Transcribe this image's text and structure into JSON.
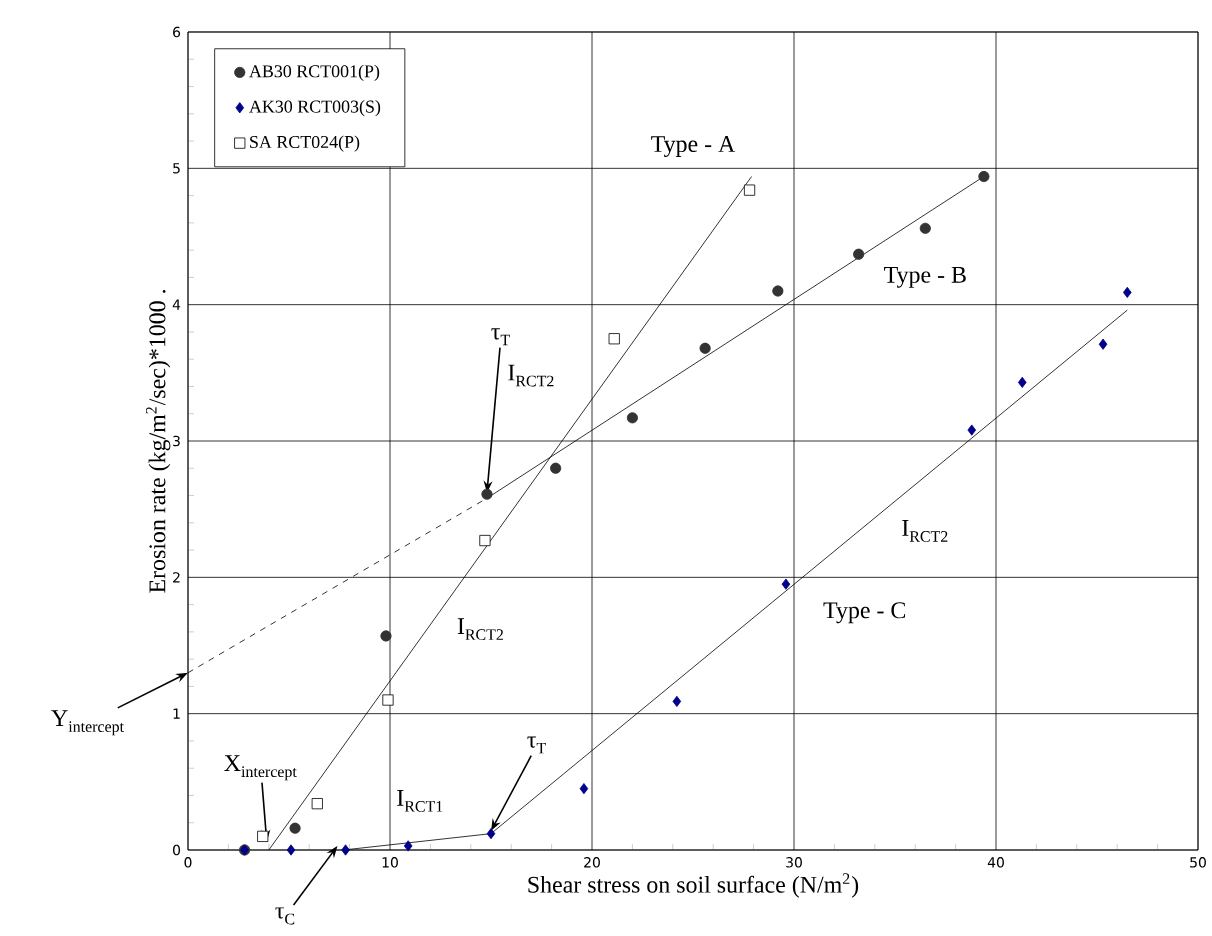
{
  "chart_data": {
    "type": "scatter",
    "xlabel": "Shear stress on soil surface (N/m$^{2}$)",
    "ylabel": "Erosion rate (kg/m$^{2}$/sec)*1000  .",
    "xlim": [
      0,
      50
    ],
    "ylim": [
      0,
      6
    ],
    "xticks": [
      0,
      10,
      20,
      30,
      40,
      50
    ],
    "yticks": [
      0,
      1,
      2,
      3,
      4,
      5,
      6
    ],
    "grid": true,
    "legend": "top left",
    "series": [
      {
        "name": "AB30 RCT001(P)",
        "color": "#333333",
        "marker": "circle",
        "x": [
          2.8,
          5.3,
          9.8,
          14.8,
          18.2,
          22.0,
          25.6,
          29.2,
          33.2,
          36.5,
          39.4
        ],
        "values": [
          0,
          0.16,
          1.57,
          2.61,
          2.8,
          3.17,
          3.68,
          4.1,
          4.37,
          4.56,
          4.94
        ]
      },
      {
        "name": "AK30 RCT003(S)",
        "color": "#00008b",
        "marker": "diamond",
        "x": [
          2.8,
          5.1,
          7.8,
          10.9,
          15.0,
          19.6,
          24.2,
          29.6,
          38.8,
          41.3,
          45.3,
          46.5
        ],
        "values": [
          0,
          0,
          0,
          0.03,
          0.12,
          0.45,
          1.09,
          1.95,
          3.08,
          3.43,
          3.71,
          4.09
        ]
      },
      {
        "name": "SA RCT024(P)",
        "color": "#000000",
        "marker": "square",
        "x": [
          3.7,
          6.4,
          9.9,
          14.7,
          21.1,
          27.8
        ],
        "values": [
          0.1,
          0.34,
          1.1,
          2.27,
          3.75,
          4.84
        ]
      },
      {
        "type": "line",
        "color": "#000000",
        "marker": "none",
        "line_style": "solid",
        "x": [
          4.0,
          27.9
        ],
        "values": [
          0,
          4.94
        ]
      },
      {
        "type": "line",
        "color": "#000000",
        "marker": "none",
        "line_style": "solid",
        "x": [
          14.8,
          39.5
        ],
        "values": [
          2.58,
          4.95
        ]
      },
      {
        "type": "line",
        "color": "#000000",
        "marker": "none",
        "line_style": "dashed",
        "x": [
          0,
          14.8
        ],
        "values": [
          1.3,
          2.58
        ]
      },
      {
        "type": "line",
        "color": "#000000",
        "marker": "none",
        "line_style": "solid",
        "x": [
          7.7,
          15.0,
          46.5
        ],
        "values": [
          0,
          0.12,
          3.96
        ]
      }
    ],
    "annotations": [
      "Type - A",
      "Type - B",
      "Type - C",
      "I$_{RCT2}$",
      "I$_{RCT2}$",
      "I$_{RCT2}$",
      "I$_{RCT1}$",
      {
        "text": "τ$_{T}$",
        "x": 14.8,
        "y": 2.62
      },
      {
        "text": "τ$_{T}$",
        "x": 15.0,
        "y": 0.14
      },
      {
        "text": "τ$_{C}$",
        "x": 7.4,
        "y": 0.03
      },
      {
        "text": "\\mathrm{Y}_{\\mathrm{intercept}}",
        "x": 0,
        "y": 1.3
      },
      {
        "text": "\\mathrm{X}_{\\mathrm{intercept}}",
        "x": 3.9,
        "y": 0.06
      }
    ]
  }
}
